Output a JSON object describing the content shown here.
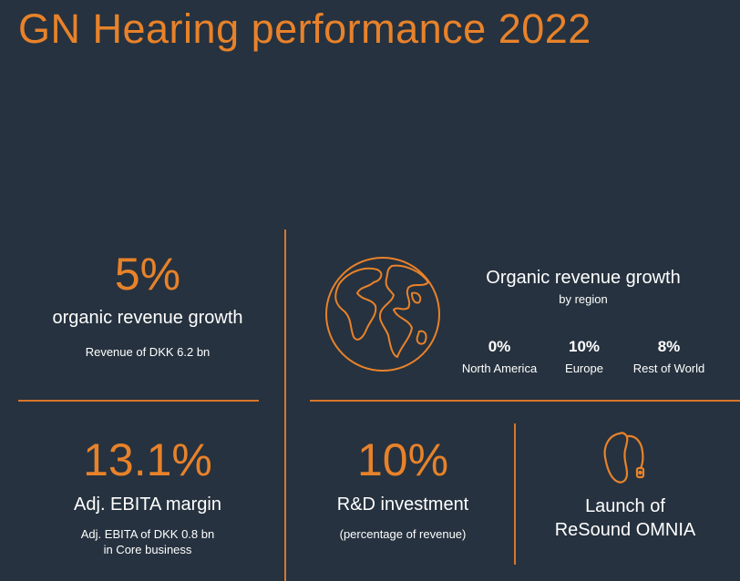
{
  "title": "GN Hearing performance 2022",
  "colors": {
    "background": "#26323f",
    "accent": "#e8822a",
    "text": "#ffffff"
  },
  "organic_growth": {
    "value": "5%",
    "label": "organic revenue growth",
    "sub": "Revenue of DKK 6.2 bn"
  },
  "regional": {
    "icon": "globe-icon",
    "title": "Organic revenue growth",
    "subtitle": "by region",
    "regions": [
      {
        "value": "0%",
        "name": "North America"
      },
      {
        "value": "10%",
        "name": "Europe"
      },
      {
        "value": "8%",
        "name": "Rest of World"
      }
    ]
  },
  "ebita": {
    "value": "13.1%",
    "label": "Adj. EBITA margin",
    "sub_line1": "Adj. EBITA of DKK 0.8 bn",
    "sub_line2": "in Core business"
  },
  "rnd": {
    "value": "10%",
    "label": "R&D investment",
    "sub": "(percentage of revenue)"
  },
  "launch": {
    "icon": "hearing-aid-icon",
    "line1": "Launch of",
    "line2": "ReSound OMNIA"
  }
}
